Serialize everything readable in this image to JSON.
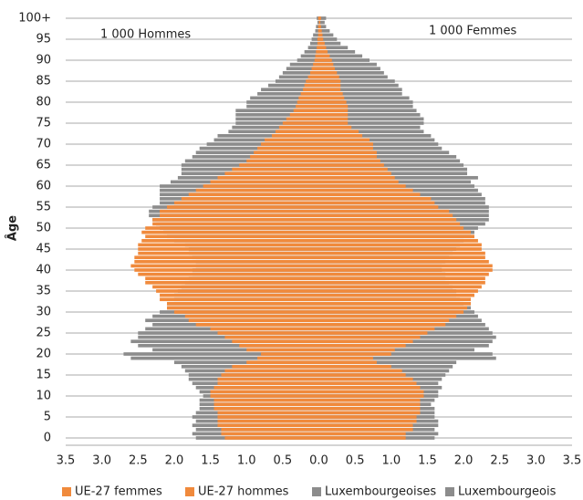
{
  "chart_data": {
    "type": "bar",
    "orientation": "horizontal",
    "grid": true,
    "legend": "bottom",
    "y_label": "Âge",
    "annotations": [
      "1 000 Hommes",
      "1 000 Femmes"
    ],
    "categories": [
      "0",
      null,
      null,
      null,
      null,
      "5",
      null,
      null,
      null,
      null,
      "10",
      null,
      null,
      null,
      null,
      "15",
      null,
      null,
      null,
      null,
      "20",
      null,
      null,
      null,
      null,
      "25",
      null,
      null,
      null,
      null,
      "30",
      null,
      null,
      null,
      null,
      "35",
      null,
      null,
      null,
      null,
      "40",
      null,
      null,
      null,
      null,
      "45",
      null,
      null,
      null,
      null,
      "50",
      null,
      null,
      null,
      null,
      "55",
      null,
      null,
      null,
      null,
      "60",
      null,
      null,
      null,
      null,
      "65",
      null,
      null,
      null,
      null,
      "70",
      null,
      null,
      null,
      null,
      "75",
      null,
      null,
      null,
      null,
      "80",
      null,
      null,
      null,
      null,
      "85",
      null,
      null,
      null,
      null,
      "90",
      null,
      null,
      null,
      null,
      "95",
      null,
      null,
      null,
      null,
      "100+"
    ],
    "xlim": [
      -3.5,
      3.5
    ],
    "xticks": [
      {
        "value": -3.5,
        "label": "3.5"
      },
      {
        "value": -3,
        "label": "3.0"
      },
      {
        "value": -2.5,
        "label": "2.5"
      },
      {
        "value": -2,
        "label": "2.0"
      },
      {
        "value": -1.5,
        "label": "1.5"
      },
      {
        "value": -1,
        "label": "1.0"
      },
      {
        "value": -0.5,
        "label": "0.5"
      },
      {
        "value": 0,
        "label": "0.0"
      },
      0.5,
      {
        "value": 1,
        "label": "1.0"
      },
      1.5,
      {
        "value": 2,
        "label": "2.0"
      },
      2.5,
      {
        "value": 3,
        "label": "3.0"
      },
      3.5
    ],
    "series": [
      {
        "name": "UE-27 femmes",
        "color": "#f08a3c",
        "values": [
          1.2,
          1.2,
          1.3,
          1.3,
          1.35,
          1.35,
          1.4,
          1.4,
          1.4,
          1.4,
          1.45,
          1.45,
          1.4,
          1.35,
          1.3,
          1.2,
          1.15,
          1.0,
          0.8,
          0.75,
          1.0,
          1.05,
          1.2,
          1.3,
          1.4,
          1.5,
          1.6,
          1.75,
          1.8,
          1.9,
          2.0,
          2.05,
          2.1,
          2.1,
          2.15,
          2.2,
          2.25,
          2.3,
          2.3,
          2.35,
          2.4,
          2.4,
          2.35,
          2.3,
          2.3,
          2.25,
          2.25,
          2.2,
          2.15,
          2.1,
          2.0,
          1.95,
          1.9,
          1.85,
          1.8,
          1.65,
          1.6,
          1.55,
          1.4,
          1.3,
          1.2,
          1.1,
          1.05,
          1.0,
          0.95,
          0.9,
          0.85,
          0.8,
          0.8,
          0.75,
          0.75,
          0.7,
          0.6,
          0.55,
          0.45,
          0.4,
          0.4,
          0.4,
          0.4,
          0.4,
          0.38,
          0.35,
          0.33,
          0.3,
          0.3,
          0.3,
          0.28,
          0.25,
          0.22,
          0.2,
          0.18,
          0.15,
          0.12,
          0.1,
          0.08,
          0.06,
          0.05,
          0.04,
          0.03,
          0.02,
          0.03
        ]
      },
      {
        "name": "UE-27 hommes",
        "color": "#f08a3c",
        "values": [
          -1.3,
          -1.35,
          -1.35,
          -1.4,
          -1.4,
          -1.4,
          -1.4,
          -1.45,
          -1.45,
          -1.45,
          -1.5,
          -1.5,
          -1.45,
          -1.4,
          -1.4,
          -1.35,
          -1.3,
          -1.2,
          -1.0,
          -0.85,
          -0.8,
          -1.0,
          -1.1,
          -1.2,
          -1.3,
          -1.4,
          -1.5,
          -1.7,
          -1.8,
          -1.85,
          -2.0,
          -2.1,
          -2.1,
          -2.2,
          -2.2,
          -2.25,
          -2.3,
          -2.4,
          -2.4,
          -2.5,
          -2.55,
          -2.6,
          -2.55,
          -2.55,
          -2.5,
          -2.5,
          -2.5,
          -2.45,
          -2.4,
          -2.45,
          -2.4,
          -2.3,
          -2.3,
          -2.2,
          -2.2,
          -2.1,
          -2.0,
          -1.9,
          -1.8,
          -1.7,
          -1.6,
          -1.5,
          -1.4,
          -1.3,
          -1.2,
          -1.1,
          -1.0,
          -0.95,
          -0.9,
          -0.85,
          -0.8,
          -0.75,
          -0.65,
          -0.6,
          -0.55,
          -0.5,
          -0.45,
          -0.4,
          -0.35,
          -0.32,
          -0.3,
          -0.28,
          -0.25,
          -0.22,
          -0.2,
          -0.18,
          -0.15,
          -0.12,
          -0.1,
          -0.08,
          -0.06,
          -0.05,
          -0.04,
          -0.03,
          -0.02,
          -0.02,
          -0.01,
          -0.01,
          -0.01,
          0,
          -0.01
        ]
      },
      {
        "name": "Luxembourgeoises",
        "color": "#8c8c8c",
        "values": [
          1.6,
          1.65,
          1.6,
          1.65,
          1.65,
          1.6,
          1.6,
          1.6,
          1.55,
          1.6,
          1.65,
          1.65,
          1.7,
          1.65,
          1.7,
          1.75,
          1.8,
          1.85,
          1.9,
          2.45,
          2.4,
          2.15,
          2.35,
          2.4,
          2.45,
          2.4,
          2.35,
          2.3,
          2.25,
          2.2,
          2.15,
          2.1,
          2.0,
          1.95,
          1.9,
          1.9,
          1.85,
          1.8,
          1.75,
          1.75,
          1.7,
          1.7,
          1.75,
          1.8,
          1.85,
          1.9,
          1.95,
          2.0,
          2.1,
          2.15,
          2.2,
          2.3,
          2.35,
          2.35,
          2.35,
          2.35,
          2.3,
          2.3,
          2.25,
          2.2,
          2.15,
          2.1,
          2.2,
          2.05,
          2.05,
          2.0,
          1.95,
          1.9,
          1.8,
          1.7,
          1.65,
          1.6,
          1.55,
          1.45,
          1.4,
          1.45,
          1.45,
          1.4,
          1.35,
          1.3,
          1.3,
          1.25,
          1.15,
          1.15,
          1.1,
          1.05,
          0.95,
          0.9,
          0.85,
          0.8,
          0.7,
          0.6,
          0.5,
          0.4,
          0.3,
          0.25,
          0.2,
          0.15,
          0.1,
          0.08,
          0.1
        ]
      },
      {
        "name": "Luxembourgeois",
        "color": "#8c8c8c",
        "values": [
          -1.7,
          -1.75,
          -1.7,
          -1.75,
          -1.7,
          -1.75,
          -1.7,
          -1.65,
          -1.65,
          -1.65,
          -1.6,
          -1.65,
          -1.7,
          -1.75,
          -1.8,
          -1.8,
          -1.85,
          -1.9,
          -2.0,
          -2.6,
          -2.7,
          -2.3,
          -2.5,
          -2.6,
          -2.5,
          -2.5,
          -2.4,
          -2.3,
          -2.4,
          -2.3,
          -2.2,
          -2.1,
          -2.1,
          -2.0,
          -2.0,
          -1.95,
          -1.9,
          -1.85,
          -1.8,
          -1.75,
          -1.75,
          -1.7,
          -1.7,
          -1.75,
          -1.8,
          -1.8,
          -1.85,
          -2.0,
          -2.1,
          -2.15,
          -2.2,
          -2.25,
          -2.3,
          -2.35,
          -2.35,
          -2.3,
          -2.2,
          -2.2,
          -2.2,
          -2.2,
          -2.2,
          -2.05,
          -1.95,
          -1.9,
          -1.9,
          -1.9,
          -1.85,
          -1.75,
          -1.7,
          -1.65,
          -1.55,
          -1.45,
          -1.4,
          -1.25,
          -1.2,
          -1.15,
          -1.15,
          -1.15,
          -1.15,
          -1.0,
          -1.0,
          -0.95,
          -0.85,
          -0.8,
          -0.7,
          -0.6,
          -0.55,
          -0.5,
          -0.45,
          -0.4,
          -0.3,
          -0.25,
          -0.2,
          -0.15,
          -0.12,
          -0.1,
          -0.08,
          -0.05,
          -0.04,
          -0.02,
          -0.03
        ]
      }
    ]
  }
}
